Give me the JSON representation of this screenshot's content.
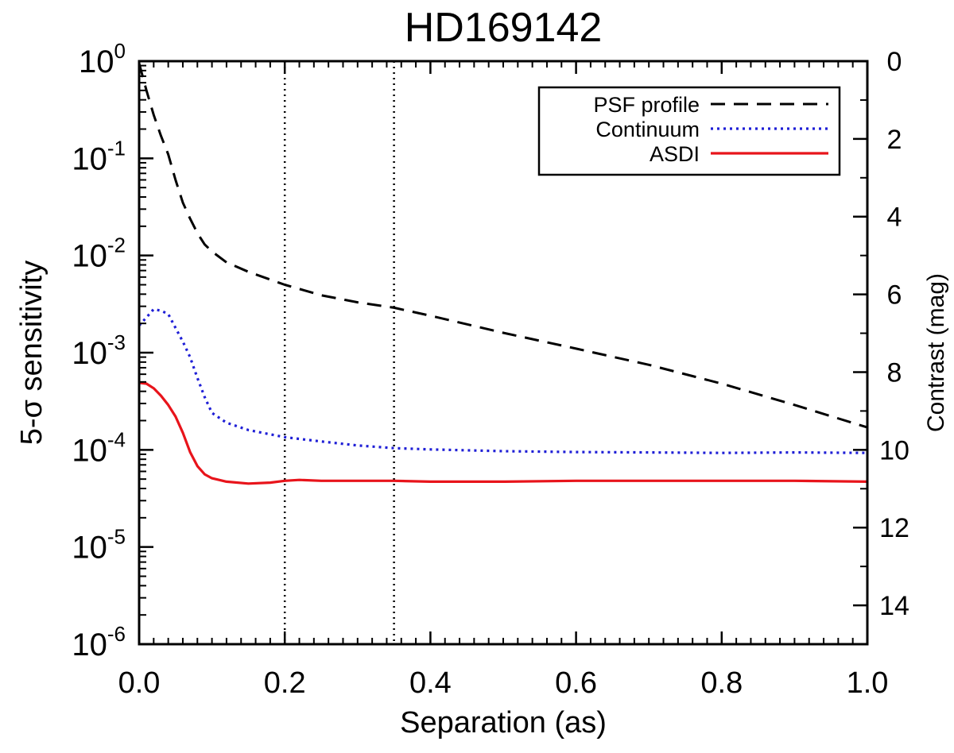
{
  "chart_data": {
    "type": "line",
    "title": "HD169142",
    "xlabel": "Separation (as)",
    "ylabel": "5-σ sensitivity",
    "y2label": "Contrast (mag)",
    "xlim": [
      0.0,
      1.0
    ],
    "ylim": [
      1e-06,
      1.0
    ],
    "yscale": "log",
    "y2lim": [
      0,
      15
    ],
    "x_ticks": [
      "0.0",
      "0.2",
      "0.4",
      "0.6",
      "0.8",
      "1.0"
    ],
    "y_ticks": [
      {
        "base": "10",
        "exp": "0"
      },
      {
        "base": "10",
        "exp": "-1"
      },
      {
        "base": "10",
        "exp": "-2"
      },
      {
        "base": "10",
        "exp": "-3"
      },
      {
        "base": "10",
        "exp": "-4"
      },
      {
        "base": "10",
        "exp": "-5"
      },
      {
        "base": "10",
        "exp": "-6"
      }
    ],
    "y2_ticks": [
      "0",
      "2",
      "4",
      "6",
      "8",
      "10",
      "12",
      "14"
    ],
    "vlines": [
      0.2,
      0.35
    ],
    "legend_position": "top-right",
    "series": [
      {
        "name": "PSF profile",
        "color": "#000000",
        "style": "dashed",
        "x": [
          0.0,
          0.01,
          0.02,
          0.03,
          0.04,
          0.05,
          0.06,
          0.07,
          0.08,
          0.09,
          0.1,
          0.12,
          0.15,
          0.2,
          0.25,
          0.3,
          0.35,
          0.4,
          0.5,
          0.6,
          0.7,
          0.8,
          0.9,
          1.0
        ],
        "y": [
          0.95,
          0.5,
          0.28,
          0.17,
          0.11,
          0.06,
          0.035,
          0.024,
          0.017,
          0.013,
          0.011,
          0.0085,
          0.0068,
          0.005,
          0.0039,
          0.0033,
          0.0029,
          0.0024,
          0.0016,
          0.0011,
          0.00075,
          0.00048,
          0.00029,
          0.00017
        ]
      },
      {
        "name": "Continuum",
        "color": "#1f1fd6",
        "style": "dotted",
        "x": [
          0.0,
          0.01,
          0.02,
          0.03,
          0.04,
          0.05,
          0.06,
          0.07,
          0.08,
          0.09,
          0.1,
          0.12,
          0.15,
          0.2,
          0.25,
          0.3,
          0.35,
          0.4,
          0.5,
          0.6,
          0.7,
          0.8,
          0.9,
          1.0
        ],
        "y": [
          0.0019,
          0.0023,
          0.0028,
          0.0027,
          0.0025,
          0.0018,
          0.0013,
          0.0009,
          0.00055,
          0.00035,
          0.00024,
          0.00019,
          0.00016,
          0.000135,
          0.000122,
          0.000111,
          0.000104,
          0.000101,
          9.7e-05,
          9.5e-05,
          9.4e-05,
          9.3e-05,
          9.4e-05,
          9.3e-05
        ]
      },
      {
        "name": "ASDI",
        "color": "#e8141b",
        "style": "solid",
        "x": [
          0.0,
          0.01,
          0.02,
          0.03,
          0.04,
          0.05,
          0.06,
          0.07,
          0.08,
          0.09,
          0.1,
          0.12,
          0.15,
          0.18,
          0.2,
          0.22,
          0.25,
          0.3,
          0.35,
          0.4,
          0.5,
          0.6,
          0.7,
          0.8,
          0.9,
          1.0
        ],
        "y": [
          0.00049,
          0.00048,
          0.00043,
          0.00036,
          0.00029,
          0.00022,
          0.00015,
          9.5e-05,
          6.8e-05,
          5.6e-05,
          5.1e-05,
          4.7e-05,
          4.5e-05,
          4.6e-05,
          4.8e-05,
          4.9e-05,
          4.8e-05,
          4.8e-05,
          4.8e-05,
          4.7e-05,
          4.7e-05,
          4.8e-05,
          4.8e-05,
          4.8e-05,
          4.8e-05,
          4.7e-05
        ]
      }
    ]
  }
}
